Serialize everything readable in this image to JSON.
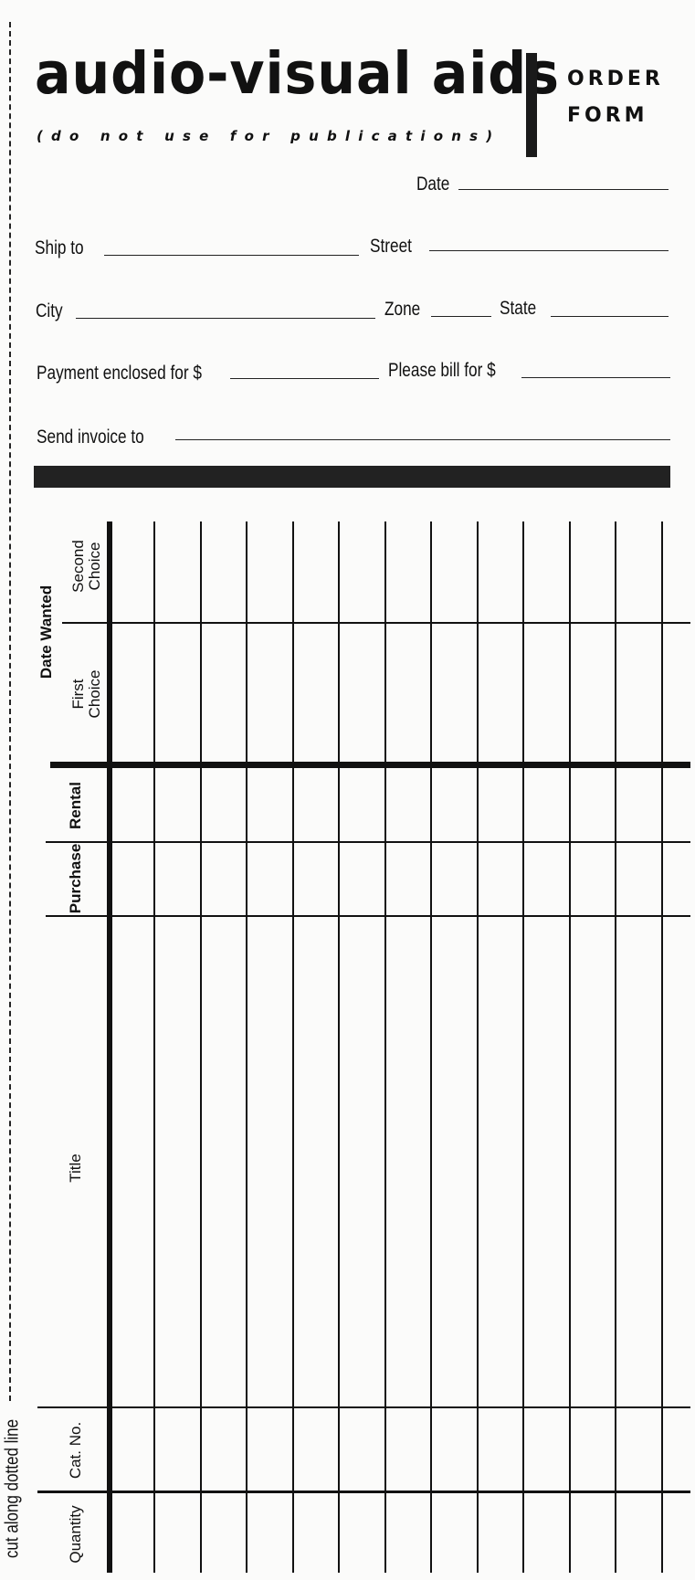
{
  "header": {
    "title": "audio-visual aids",
    "subtitle": "(do not use for publications)",
    "order_line1": "ORDER",
    "order_line2": "FORM"
  },
  "fields": {
    "date": "Date",
    "ship_to": "Ship to",
    "street": "Street",
    "city": "City",
    "zone": "Zone",
    "state": "State",
    "payment": "Payment enclosed for $",
    "bill": "Please bill for $",
    "invoice": "Send invoice to"
  },
  "table": {
    "date_wanted": "Date Wanted",
    "second_choice_1": "Second",
    "second_choice_2": "Choice",
    "first_choice_1": "First",
    "first_choice_2": "Choice",
    "rental": "Rental",
    "purchase": "Purchase",
    "title": "Title",
    "cat_no": "Cat. No.",
    "quantity": "Quantity",
    "entry_columns": 12
  },
  "cut_text": "cut along dotted line"
}
